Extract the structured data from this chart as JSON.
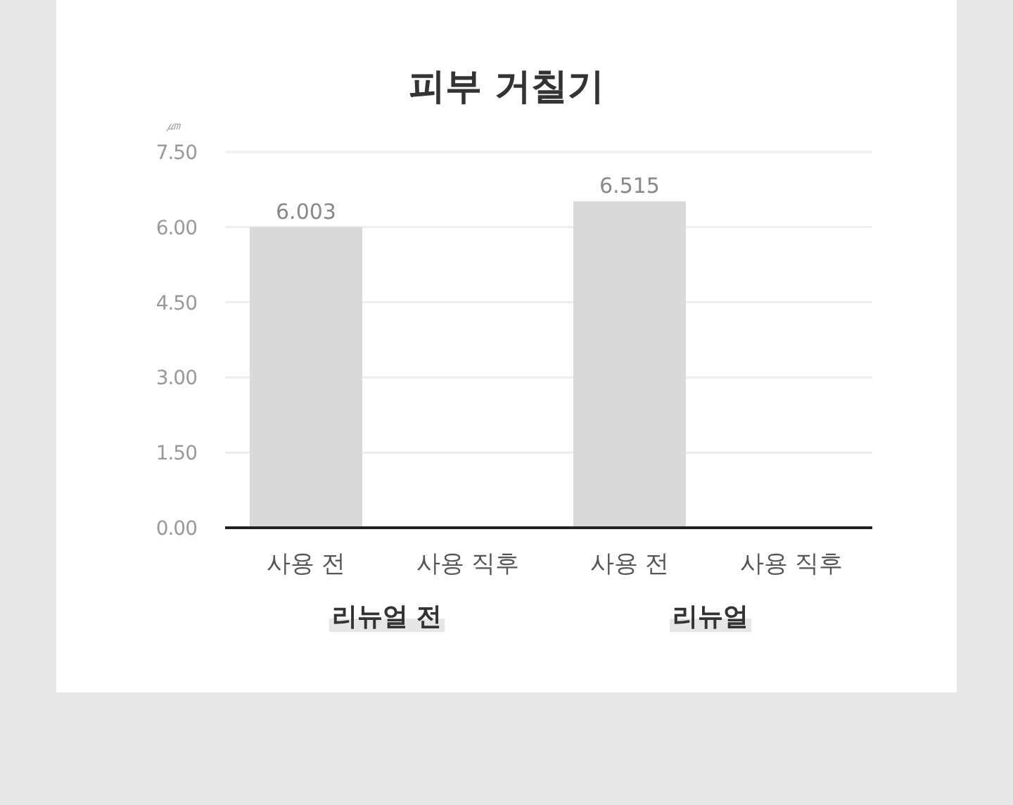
{
  "chart_data": {
    "type": "bar",
    "title": "피부 거칠기",
    "ylabel": "㎛",
    "categories": [
      "사용 전",
      "사용 직후",
      "사용 전",
      "사용 직후"
    ],
    "values": [
      6.003,
      null,
      6.515,
      null
    ],
    "color": "#d9d9d9",
    "value_labels": [
      "6.003",
      null,
      "6.515",
      null
    ],
    "ylim": [
      0,
      7.5
    ],
    "yticks": [
      {
        "value": 0,
        "label": "0.00"
      },
      {
        "value": 1.5,
        "label": "1.50"
      },
      {
        "value": 3,
        "label": "3.00"
      },
      {
        "value": 4.5,
        "label": "4.50"
      },
      {
        "value": 6,
        "label": "6.00"
      },
      {
        "value": 7.5,
        "label": "7.50"
      }
    ],
    "grid": "y",
    "annotations": [
      "리뉴얼 전",
      "리뉴얼"
    ]
  }
}
